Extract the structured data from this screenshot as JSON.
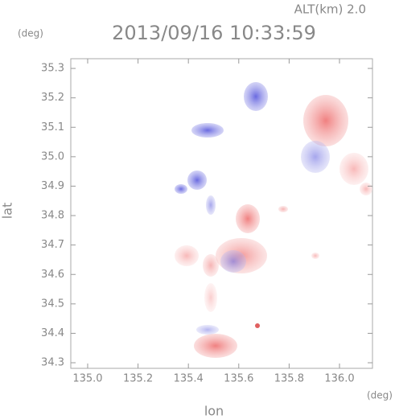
{
  "chart_data": {
    "type": "map",
    "title": "2013/09/16 10:33:59",
    "subtitle": "ALT(km) 2.0",
    "x_label": "lon",
    "y_label": "lat",
    "x_unit": "(deg)",
    "y_unit": "(deg)",
    "xlim": [
      134.933,
      136.131
    ],
    "ylim": [
      34.281,
      35.333
    ],
    "xticks": [
      {
        "value": 135,
        "label": "135.0"
      },
      135.2,
      135.4,
      135.6,
      135.8,
      {
        "value": 136,
        "label": "136.0"
      }
    ],
    "yticks": [
      34.3,
      34.4,
      34.5,
      34.6,
      34.7,
      34.8,
      34.9,
      {
        "value": 35,
        "label": "35.0"
      },
      35.1,
      35.2,
      35.3
    ]
  }
}
